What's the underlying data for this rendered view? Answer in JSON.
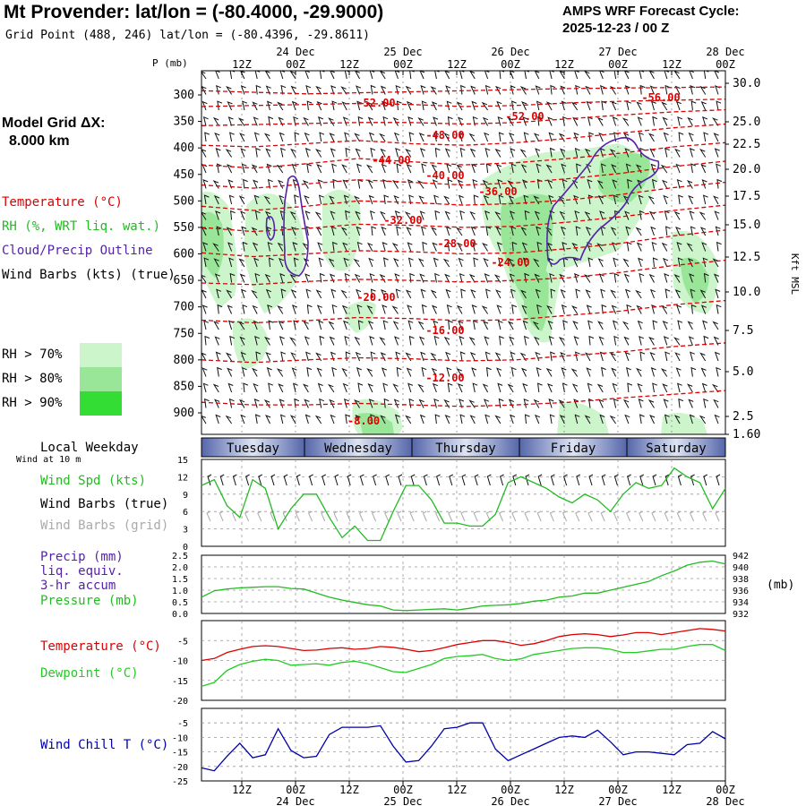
{
  "header": {
    "title": "Mt Provender:  lat/lon = (-80.4000, -29.9000)",
    "grid_point": "Grid Point (488, 246) lat/lon = (-80.4396, -29.8611)",
    "cycle_line1": "AMPS WRF Forecast Cycle:",
    "cycle_line2": "2025-12-23 / 00  Z"
  },
  "left_panel": {
    "model_grid_line1": "Model Grid ΔX:",
    "model_grid_line2": "8.000 km",
    "legend_temperature": "Temperature (°C)",
    "legend_rh": "RH (%, WRT liq. wat.)",
    "legend_cloud": "Cloud/Precip Outline",
    "legend_wind": "Wind Barbs (kts) (true)",
    "rh_key": [
      {
        "label": "RH > 70%",
        "color": "#ccf5cc"
      },
      {
        "label": "RH > 80%",
        "color": "#99e699"
      },
      {
        "label": "RH > 90%",
        "color": "#33dd33"
      }
    ],
    "local_weekday": "Local Weekday",
    "wind_at_10m": "Wind at 10 m",
    "wind_spd_label": "Wind Spd (kts)",
    "wind_barbs_true": "Wind Barbs (true)",
    "wind_barbs_grid": "Wind Barbs (grid)",
    "precip_label1": "Precip (mm)",
    "precip_label2": "liq. equiv.",
    "precip_label3": "3-hr accum",
    "pressure_label": "Pressure (mb)",
    "temp_label": "Temperature (°C)",
    "dewpoint_label": "Dewpoint (°C)",
    "windchill_label": "Wind Chill T (°C)"
  },
  "colors": {
    "temperature": "#dd0000",
    "rh": "#22bb22",
    "cloud": "#5522aa",
    "dewpoint": "#22cc22",
    "windchill": "#0000aa",
    "grid_barb": "#aaaaaa",
    "weekday_bar": "#7788bb"
  },
  "time_axis": {
    "top_hour_labels": [
      "12Z",
      "00Z",
      "12Z",
      "00Z",
      "12Z",
      "00Z",
      "12Z",
      "00Z",
      "12Z",
      "00Z"
    ],
    "top_date_labels": [
      "24 Dec",
      "25 Dec",
      "26 Dec",
      "27 Dec",
      "28 Dec"
    ],
    "bottom_hour_labels": [
      "12Z",
      "00Z",
      "12Z",
      "00Z",
      "12Z",
      "00Z",
      "12Z",
      "00Z",
      "12Z",
      "00Z"
    ],
    "bottom_date_labels": [
      "24 Dec",
      "25 Dec",
      "26 Dec",
      "27 Dec",
      "28 Dec"
    ],
    "weekdays": [
      "Tuesday",
      "Wednesday",
      "Thursday",
      "Friday",
      "Saturday"
    ]
  },
  "chart_data": [
    {
      "type": "contour",
      "name": "cross-section",
      "ylabel_left": "P (mb)",
      "ylabel_right": "Kft MSL",
      "pressure_ticks": [
        300,
        350,
        400,
        450,
        500,
        550,
        600,
        650,
        700,
        750,
        800,
        850,
        900
      ],
      "height_ticks": [
        "30.0",
        "25.0",
        "22.5",
        "20.0",
        "17.5",
        "15.0",
        "12.5",
        "10.0",
        "7.5",
        "5.0",
        "2.5",
        "1.60"
      ],
      "temperature_contour_labels": [
        "-56.00",
        "-52.00",
        "-52.00",
        "-48.00",
        "-44.00",
        "-40.00",
        "-36.00",
        "-32.00",
        "-28.00",
        "-24.00",
        "-20.00",
        "-16.00",
        "-12.00",
        "-8.00"
      ],
      "temperature_contours": [
        {
          "label": "-56.00",
          "p": [
            292,
            295,
            298,
            296,
            294,
            292,
            290,
            288,
            287,
            286,
            285
          ]
        },
        {
          "label": "-52.00",
          "p": [
            322,
            320,
            318,
            316,
            318,
            322,
            320,
            315,
            312,
            310,
            308
          ]
        },
        {
          "label": "-48.00",
          "p": [
            358,
            356,
            354,
            352,
            352,
            355,
            352,
            345,
            338,
            332,
            328
          ]
        },
        {
          "label": "-44.00",
          "p": [
            395,
            398,
            392,
            386,
            392,
            395,
            390,
            382,
            372,
            362,
            355
          ]
        },
        {
          "label": "-40.00",
          "p": [
            432,
            438,
            430,
            420,
            426,
            432,
            428,
            420,
            410,
            398,
            390
          ]
        },
        {
          "label": "-36.00",
          "p": [
            470,
            476,
            468,
            460,
            465,
            470,
            466,
            458,
            448,
            435,
            425
          ]
        },
        {
          "label": "-32.00",
          "p": [
            510,
            518,
            510,
            500,
            503,
            508,
            505,
            498,
            488,
            475,
            465
          ]
        },
        {
          "label": "-28.00",
          "p": [
            550,
            558,
            552,
            544,
            546,
            550,
            548,
            540,
            530,
            518,
            508
          ]
        },
        {
          "label": "-24.00",
          "p": [
            598,
            605,
            600,
            594,
            596,
            600,
            598,
            590,
            580,
            566,
            555
          ]
        },
        {
          "label": "-20.00",
          "p": [
            655,
            658,
            652,
            648,
            650,
            653,
            650,
            645,
            635,
            622,
            612
          ]
        },
        {
          "label": "-16.00",
          "p": [
            725,
            730,
            726,
            720,
            722,
            726,
            724,
            716,
            708,
            696,
            688
          ]
        },
        {
          "label": "-12.00",
          "p": [
            800,
            805,
            800,
            796,
            798,
            802,
            800,
            792,
            785,
            775,
            768
          ]
        },
        {
          "label": "-8.00",
          "p": [
            880,
            885,
            885,
            882,
            885,
            888,
            885,
            880,
            872,
            865,
            858
          ]
        }
      ]
    },
    {
      "type": "line",
      "name": "wind-speed",
      "ylim": [
        0,
        15
      ],
      "yticks": [
        "0",
        "3",
        "6",
        "9",
        "12",
        "15"
      ],
      "series": [
        {
          "name": "Wind Spd (kts)",
          "values": [
            10.5,
            11.5,
            7.0,
            5.0,
            11.5,
            10.0,
            3.0,
            6.5,
            9.0,
            9.0,
            5.0,
            1.5,
            3.5,
            1.0,
            1.0,
            6.0,
            10.5,
            10.5,
            8.0,
            4.0,
            4.0,
            3.5,
            3.5,
            5.5,
            11.0,
            12.0,
            11.0,
            10.0,
            8.5,
            7.5,
            9.0,
            8.0,
            6.0,
            9.0,
            11.0,
            10.0,
            10.5,
            13.5,
            12.0,
            11.0,
            6.5,
            10.0
          ]
        }
      ]
    },
    {
      "type": "line",
      "name": "precip-pressure",
      "ylim_left": [
        0,
        2.5
      ],
      "yticks_left": [
        "0.0",
        "0.5",
        "1.0",
        "1.5",
        "2.0",
        "2.5"
      ],
      "ylim_right": [
        932,
        942
      ],
      "yticks_right": [
        "932",
        "934",
        "936",
        "938",
        "940",
        "942"
      ],
      "y2label": "(mb)",
      "series": [
        {
          "name": "Pressure (mb)",
          "axis": "right",
          "values": [
            934.8,
            935.9,
            936.2,
            936.4,
            936.5,
            936.6,
            936.6,
            936.3,
            936.2,
            935.5,
            934.8,
            934.3,
            933.9,
            933.5,
            933.3,
            932.6,
            932.5,
            932.6,
            932.7,
            932.8,
            932.6,
            932.9,
            933.3,
            933.4,
            933.5,
            933.7,
            934.1,
            934.3,
            934.8,
            935.0,
            935.5,
            935.5,
            936.0,
            936.5,
            937.0,
            937.5,
            938.5,
            939.3,
            940.3,
            940.8,
            941.0,
            940.5
          ]
        },
        {
          "name": "Precip (mm)",
          "axis": "left",
          "values": []
        }
      ]
    },
    {
      "type": "line",
      "name": "temperature-dewpoint",
      "ylim": [
        -20,
        0
      ],
      "yticks": [
        "-20",
        "-15",
        "-10",
        "-5"
      ],
      "series": [
        {
          "name": "Temperature (°C)",
          "values": [
            -10.0,
            -9.5,
            -8.0,
            -7.2,
            -6.5,
            -6.3,
            -6.5,
            -7.0,
            -7.5,
            -7.4,
            -7.0,
            -6.8,
            -7.2,
            -7.0,
            -6.5,
            -6.7,
            -7.2,
            -7.8,
            -7.5,
            -6.8,
            -6.0,
            -5.5,
            -5.0,
            -5.0,
            -5.5,
            -6.2,
            -5.8,
            -5.0,
            -4.0,
            -3.5,
            -3.3,
            -3.5,
            -4.0,
            -3.6,
            -3.0,
            -3.0,
            -3.5,
            -3.0,
            -2.5,
            -2.0,
            -2.2,
            -2.6
          ]
        },
        {
          "name": "Dewpoint (°C)",
          "values": [
            -16.5,
            -15.5,
            -12.5,
            -11.0,
            -10.2,
            -9.7,
            -10.0,
            -11.2,
            -11.0,
            -10.8,
            -11.2,
            -10.5,
            -10.2,
            -10.8,
            -11.8,
            -12.8,
            -13.0,
            -12.0,
            -11.0,
            -9.5,
            -9.0,
            -8.8,
            -8.5,
            -9.5,
            -10.0,
            -9.6,
            -8.5,
            -8.0,
            -7.5,
            -7.0,
            -6.8,
            -6.8,
            -7.2,
            -8.0,
            -8.0,
            -7.6,
            -7.2,
            -7.2,
            -6.5,
            -6.0,
            -6.0,
            -7.5
          ]
        }
      ]
    },
    {
      "type": "line",
      "name": "wind-chill",
      "ylim": [
        -25,
        0
      ],
      "yticks": [
        "-25",
        "-20",
        "-15",
        "-10",
        "-5"
      ],
      "series": [
        {
          "name": "Wind Chill T (°C)",
          "values": [
            -20.5,
            -21.5,
            -16.5,
            -12.0,
            -17.0,
            -16.0,
            -7.0,
            -14.5,
            -17.0,
            -16.5,
            -9.0,
            -6.5,
            -6.5,
            -6.5,
            -6.0,
            -13.0,
            -18.5,
            -18.0,
            -13.0,
            -7.0,
            -6.5,
            -5.0,
            -5.0,
            -14.0,
            -18.0,
            -16.0,
            -14.0,
            -12.0,
            -10.0,
            -9.5,
            -10.0,
            -7.5,
            -11.5,
            -16.0,
            -15.0,
            -15.0,
            -15.5,
            -16.0,
            -12.5,
            -12.0,
            -8.0,
            -10.5
          ]
        }
      ]
    }
  ]
}
